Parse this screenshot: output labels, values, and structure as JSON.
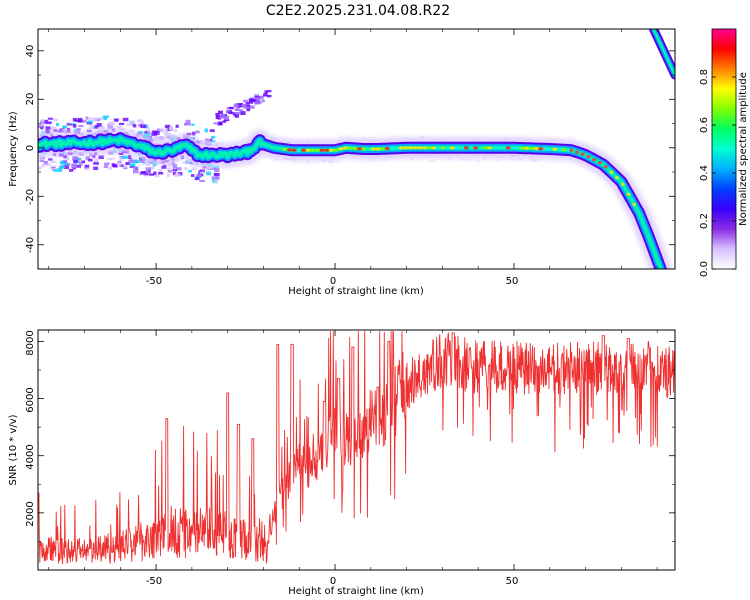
{
  "chart_data": [
    {
      "type": "heatmap",
      "title": "C2E2.2025.231.04.08.R22",
      "xlabel": "Height of straight line (km)",
      "ylabel": "Frequency (Hz)",
      "xlim": [
        -83,
        95
      ],
      "ylim": [
        -50,
        49
      ],
      "xticks": [
        "-50",
        "0",
        "50"
      ],
      "yticks": [
        "40",
        "20",
        "0",
        "-20",
        "-40"
      ],
      "grid": false,
      "trace_points": [
        [
          -83,
          1.5
        ],
        [
          -70,
          2
        ],
        [
          -60,
          3
        ],
        [
          -55,
          1
        ],
        [
          -50,
          -2
        ],
        [
          -45,
          -1
        ],
        [
          -42,
          1
        ],
        [
          -38,
          -3
        ],
        [
          -30,
          -3
        ],
        [
          -25,
          -2
        ],
        [
          -21,
          2
        ],
        [
          -17,
          0
        ],
        [
          -12,
          -1
        ],
        [
          -5,
          -1
        ],
        [
          0,
          -1
        ],
        [
          3,
          0
        ],
        [
          8,
          -0.5
        ],
        [
          12,
          -0.5
        ],
        [
          20,
          0
        ],
        [
          35,
          0
        ],
        [
          50,
          0
        ],
        [
          60,
          -0.5
        ],
        [
          66,
          -1
        ],
        [
          70,
          -3
        ],
        [
          75,
          -7
        ],
        [
          80,
          -14
        ],
        [
          85,
          -27
        ],
        [
          88,
          -38
        ],
        [
          91,
          -50
        ]
      ],
      "noise_cluster": {
        "x_range": [
          -34,
          -19
        ],
        "y_range": [
          12,
          22
        ]
      },
      "upper_trace": [
        [
          89,
          49
        ],
        [
          95,
          30
        ]
      ],
      "colorbar": {
        "label": "Normalized spectral amplitude",
        "range": [
          0,
          1
        ],
        "ticks": [
          "0.0",
          "0.2",
          "0.4",
          "0.6",
          "0.8"
        ],
        "colors": [
          "#ffffff",
          "#d8c2ff",
          "#8a2be2",
          "#3a00ff",
          "#0040ff",
          "#00b0ff",
          "#00ffd5",
          "#00ff60",
          "#80ff00",
          "#ffff00",
          "#ff8000",
          "#ff0000",
          "#ff0090"
        ]
      }
    },
    {
      "type": "line",
      "xlabel": "Height of straight line (km)",
      "ylabel": "SNR (10 * v/v)",
      "xlim": [
        -83,
        95
      ],
      "ylim": [
        0,
        8400
      ],
      "xticks": [
        "-50",
        "0",
        "50"
      ],
      "yticks": [
        "8000",
        "6000",
        "4000",
        "2000"
      ],
      "grid": false,
      "color": "#ef3030",
      "envelope": [
        [
          -83,
          900
        ],
        [
          -75,
          800
        ],
        [
          -68,
          850
        ],
        [
          -60,
          1000
        ],
        [
          -52,
          1300
        ],
        [
          -45,
          1700
        ],
        [
          -38,
          1600
        ],
        [
          -32,
          1600
        ],
        [
          -27,
          1400
        ],
        [
          -22,
          1200
        ],
        [
          -19,
          800
        ],
        [
          -17,
          2000
        ],
        [
          -14,
          3000
        ],
        [
          -10,
          3700
        ],
        [
          -6,
          3600
        ],
        [
          -3,
          4400
        ],
        [
          0,
          4900
        ],
        [
          3,
          4600
        ],
        [
          6,
          4800
        ],
        [
          10,
          5300
        ],
        [
          15,
          5600
        ],
        [
          20,
          6600
        ],
        [
          25,
          7200
        ],
        [
          30,
          7600
        ],
        [
          40,
          7300
        ],
        [
          50,
          7300
        ],
        [
          60,
          7200
        ],
        [
          70,
          7300
        ],
        [
          80,
          7200
        ],
        [
          90,
          7300
        ],
        [
          95,
          7000
        ]
      ],
      "spike_peaks": [
        [
          -83,
          2700
        ],
        [
          -47,
          5300
        ],
        [
          -30,
          6200
        ],
        [
          -27,
          5100
        ],
        [
          -23,
          4600
        ],
        [
          -16,
          7900
        ],
        [
          -12,
          7900
        ],
        [
          -3,
          5900
        ],
        [
          1,
          6700
        ],
        [
          5,
          7800
        ],
        [
          12,
          6400
        ],
        [
          15,
          8000
        ],
        [
          33,
          8300
        ],
        [
          75,
          8200
        ],
        [
          82,
          8100
        ]
      ]
    }
  ]
}
